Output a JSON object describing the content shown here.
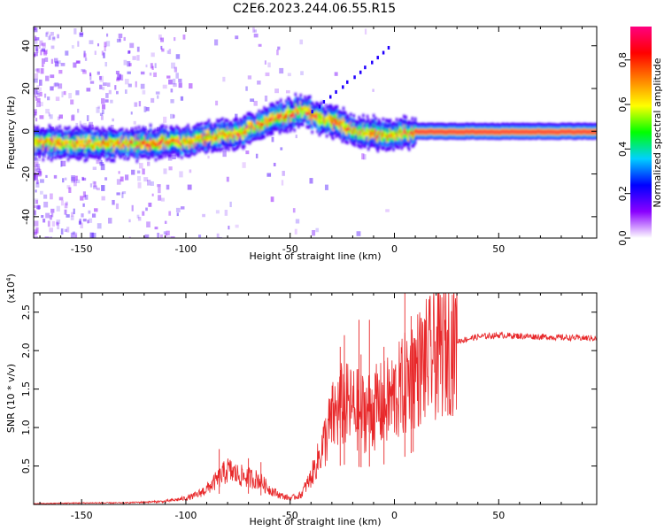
{
  "title": "C2E6.2023.244.06.55.R15",
  "chart_data": [
    {
      "type": "heatmap",
      "xlabel": "Height of straight line (km)",
      "ylabel": "Frequency (Hz)",
      "xlim": [
        -173,
        97
      ],
      "ylim": [
        -50,
        49
      ],
      "xticks": [
        -150,
        -100,
        -50,
        0,
        50
      ],
      "yticks": [
        -40,
        -20,
        0,
        20,
        40
      ],
      "colorbar": {
        "label": "Normalized spectral amplitude",
        "range": [
          0,
          0.95
        ],
        "ticks": [
          "0.0",
          "0.2",
          "0.4",
          "0.6",
          "0.8"
        ],
        "tick_values": [
          0.0,
          0.2,
          0.4,
          0.6,
          0.8
        ],
        "colormap": [
          "#ffffff",
          "#8a00ff",
          "#0000ff",
          "#00d0ff",
          "#00ff00",
          "#ffff00",
          "#ff8000",
          "#ff0000",
          "#ff0080"
        ]
      },
      "ridge": {
        "x": [
          -173,
          -150,
          -130,
          -110,
          -100,
          -90,
          -80,
          -70,
          -60,
          -50,
          -45,
          -40,
          -35,
          -30,
          -25,
          -20,
          -10,
          0,
          10,
          50,
          97
        ],
        "freq": [
          -5,
          -6,
          -6,
          -5,
          -5,
          -3,
          -2,
          1,
          5,
          8,
          10,
          8,
          6,
          5,
          3,
          0,
          -1,
          -2,
          0,
          0,
          0
        ]
      }
    },
    {
      "type": "line",
      "xlabel": "Height of straight line (km)",
      "ylabel": "SNR (10 * v/v)",
      "y_exponent": "(x10",
      "y_exponent_power": "4",
      "y_exponent_close": ")",
      "xlim": [
        -173,
        97
      ],
      "ylim": [
        0,
        2.75
      ],
      "xticks": [
        -150,
        -100,
        -50,
        0,
        50
      ],
      "ytick_values": [
        0.5,
        1.0,
        1.5,
        2.0,
        2.5
      ],
      "ytick_labels": [
        "0.5",
        "1.0",
        "1.5",
        "2.0",
        "2.5"
      ],
      "color": "#e8282a",
      "envelope": {
        "x": [
          -173,
          -150,
          -130,
          -110,
          -100,
          -95,
          -90,
          -85,
          -80,
          -75,
          -70,
          -65,
          -60,
          -55,
          -50,
          -45,
          -40,
          -35,
          -30,
          -25,
          -20,
          -15,
          -10,
          -5,
          0,
          5,
          10,
          15,
          20,
          25,
          30,
          40,
          50,
          60,
          70,
          80,
          97
        ],
        "y": [
          0.01,
          0.02,
          0.02,
          0.04,
          0.08,
          0.12,
          0.2,
          0.32,
          0.45,
          0.38,
          0.35,
          0.32,
          0.2,
          0.12,
          0.08,
          0.12,
          0.35,
          0.7,
          1.1,
          1.3,
          1.25,
          1.2,
          1.25,
          1.3,
          1.4,
          1.55,
          1.75,
          1.85,
          1.95,
          2.05,
          2.12,
          2.18,
          2.2,
          2.19,
          2.18,
          2.17,
          2.16
        ]
      },
      "spikes": [
        {
          "x": -84,
          "y": 0.72
        },
        {
          "x": -70,
          "y": 0.6
        },
        {
          "x": -64,
          "y": 0.55
        },
        {
          "x": -26,
          "y": 2.05
        },
        {
          "x": -24,
          "y": 2.2
        },
        {
          "x": -17,
          "y": 2.4
        },
        {
          "x": -16,
          "y": 1.95
        },
        {
          "x": -12,
          "y": 2.4
        },
        {
          "x": -5,
          "y": 2.05
        },
        {
          "x": 5,
          "y": 2.75
        },
        {
          "x": 8,
          "y": 2.45
        },
        {
          "x": 9,
          "y": 2.1
        }
      ]
    }
  ]
}
